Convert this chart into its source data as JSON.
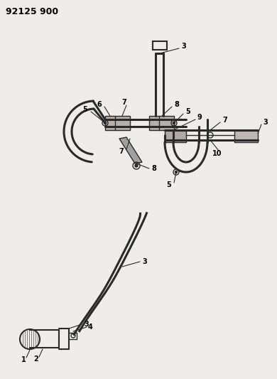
{
  "title": "92125 900",
  "bg_color": "#f0ede8",
  "line_color": "#2a2a2a",
  "label_color": "#000000",
  "title_fontsize": 9,
  "label_fontsize": 7,
  "fig_width": 3.9,
  "fig_height": 5.33,
  "dpi": 100
}
